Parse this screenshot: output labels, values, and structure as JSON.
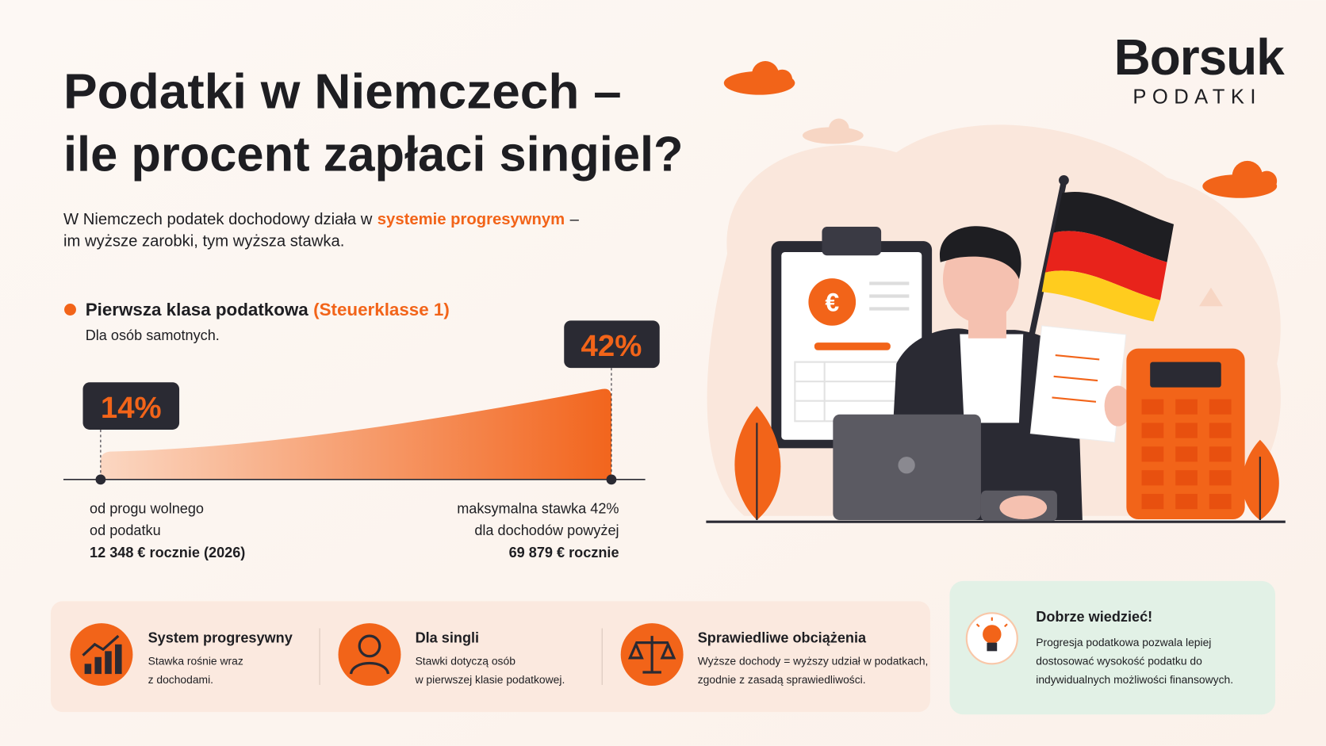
{
  "logo": {
    "name": "Borsuk",
    "sub": "PODATKI"
  },
  "header": {
    "title_line1": "Podatki w Niemczech –",
    "title_line2": "ile procent zapłaci singiel?"
  },
  "intro": {
    "text1": "W Niemczech podatek dochodowy działa w",
    "highlight": "systemie progresywnym",
    "text2": "–",
    "line2": "im wyższe zarobki, tym wyższa stawka."
  },
  "tax_class": {
    "title": "Pierwsza klasa podatkowa",
    "highlight": "(Steuerklasse 1)",
    "subtitle": "Dla osób samotnych."
  },
  "rate_scale": {
    "min_rate": "14%",
    "max_rate": "42%",
    "min_label": [
      "od progu wolnego",
      "od podatku",
      "12 348 € rocznie (2026)"
    ],
    "max_label": [
      "maksymalna stawka 42%",
      "dla dochodów powyżej",
      "69 879 € rocznie"
    ]
  },
  "features": [
    {
      "title": "System progresywny",
      "lines": [
        "Stawka rośnie wraz",
        "z dochodami."
      ]
    },
    {
      "title": "Dla singli",
      "lines": [
        "Stawki dotyczą osób",
        "w pierwszej klasie podatkowej."
      ]
    },
    {
      "title": "Sprawiedliwe obciążenia",
      "lines": [
        "Wyższe dochody = wyższy udział w podatkach,",
        "zgodnie z zasadą sprawiedliwości."
      ]
    }
  ],
  "tip": {
    "title": "Dobrze wiedzieć!",
    "lines": [
      "Progresja podatkowa pozwala lepiej",
      "dostosować wysokość podatku do",
      "indywidualnych możliwości finansowych."
    ]
  }
}
